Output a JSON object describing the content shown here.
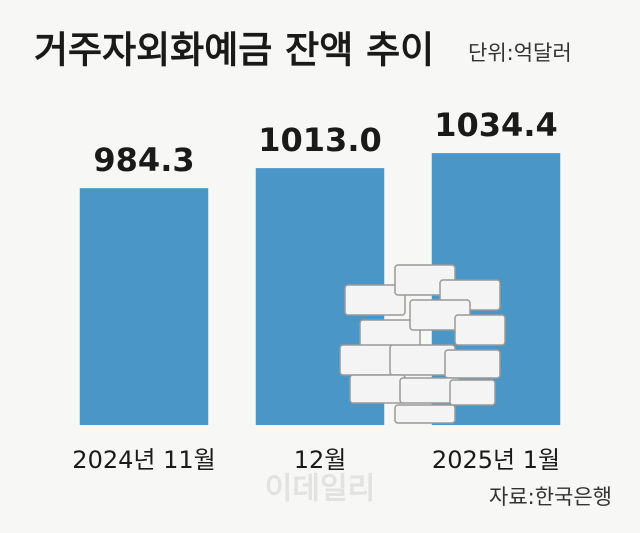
{
  "chart_data": {
    "type": "bar",
    "title": "거주자외화예금 잔액 추이",
    "subtitle": "단위:억달러",
    "categories": [
      "2024년 11월",
      "12월",
      "2025년 1월"
    ],
    "values": [
      984.3,
      1013.0,
      1034.4
    ],
    "value_labels": [
      "984.3",
      "1013.0",
      "1034.4"
    ],
    "color": "#4a96c6",
    "ylim": [
      646,
      1036
    ],
    "source": "자료:한국은행",
    "watermark": "이데일리"
  }
}
